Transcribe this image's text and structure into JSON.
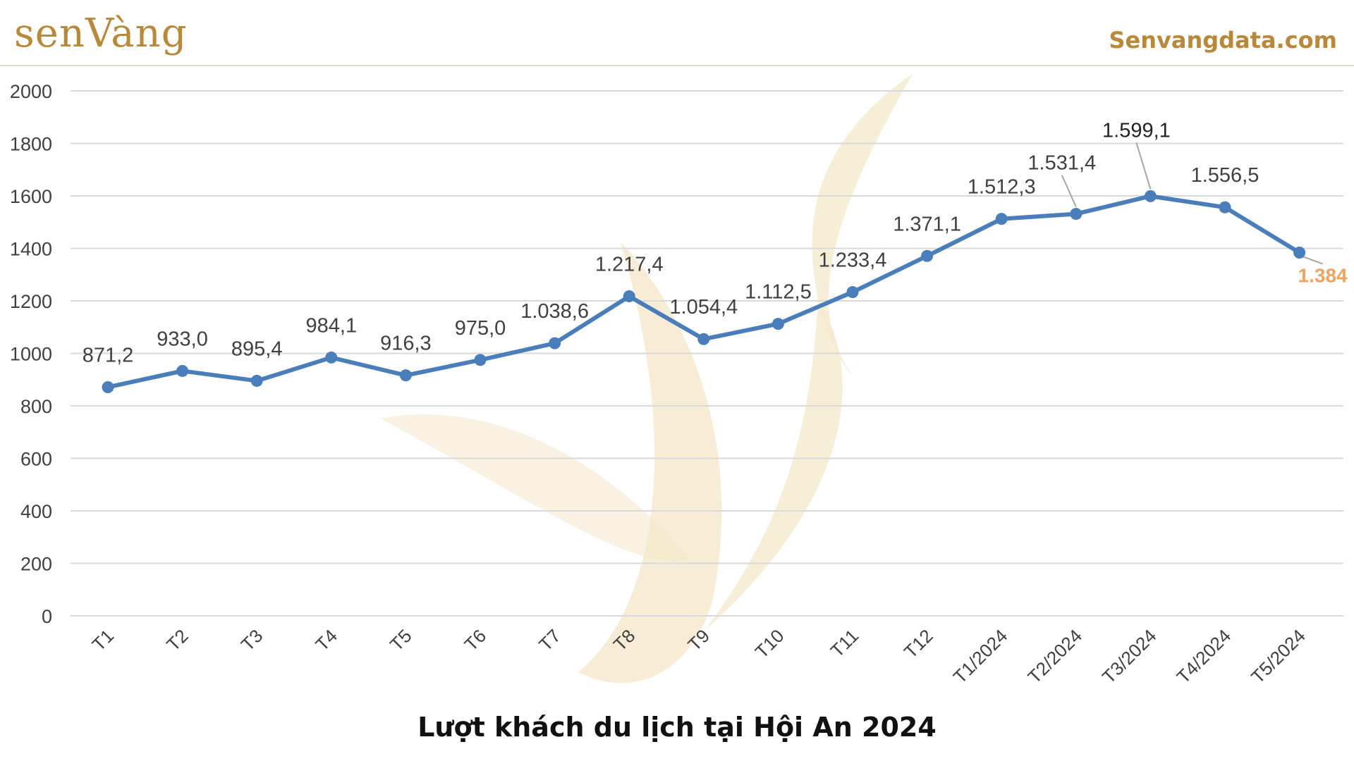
{
  "header": {
    "logo_text": "senVàng",
    "site": "Senvangdata.com"
  },
  "colors": {
    "brand": "#b8893a",
    "line": "#4a7ebb",
    "grid": "#d9d9d9",
    "label": "#404040",
    "highlight": "#f0a35e",
    "watermark": "#f3e6c6"
  },
  "chart_data": {
    "type": "line",
    "categories": [
      "T1",
      "T2",
      "T3",
      "T4",
      "T5",
      "T6",
      "T7",
      "T8",
      "T9",
      "T10",
      "T11",
      "T12",
      "T1/2024",
      "T2/2024",
      "T3/2024",
      "T4/2024",
      "T5/2024"
    ],
    "series": [
      {
        "values": [
          871.2,
          933.0,
          895.4,
          984.1,
          916.3,
          975.0,
          1038.6,
          1217.4,
          1054.4,
          1112.5,
          1233.4,
          1371.1,
          1512.3,
          1531.4,
          1599.1,
          1556.5,
          1384
        ]
      }
    ],
    "data_labels": [
      "871,2",
      "933,0",
      "895,4",
      "984,1",
      "916,3",
      "975,0",
      "1.038,6",
      "1.217,4",
      "1.054,4",
      "1.112,5",
      "1.233,4",
      "1.371,1",
      "1.512,3",
      "1.531,4",
      "1.599,1",
      "1.556,5",
      "1.384"
    ],
    "highlighted_label_index": 16,
    "y_ticks": [
      0,
      200,
      400,
      600,
      800,
      1000,
      1200,
      1400,
      1600,
      1800,
      2000
    ],
    "ylim": [
      0,
      2000
    ],
    "grid": true,
    "legend": "none",
    "xlabel": "",
    "ylabel": "",
    "caption": "Lượt khách du lịch tại Hội An 2024"
  }
}
